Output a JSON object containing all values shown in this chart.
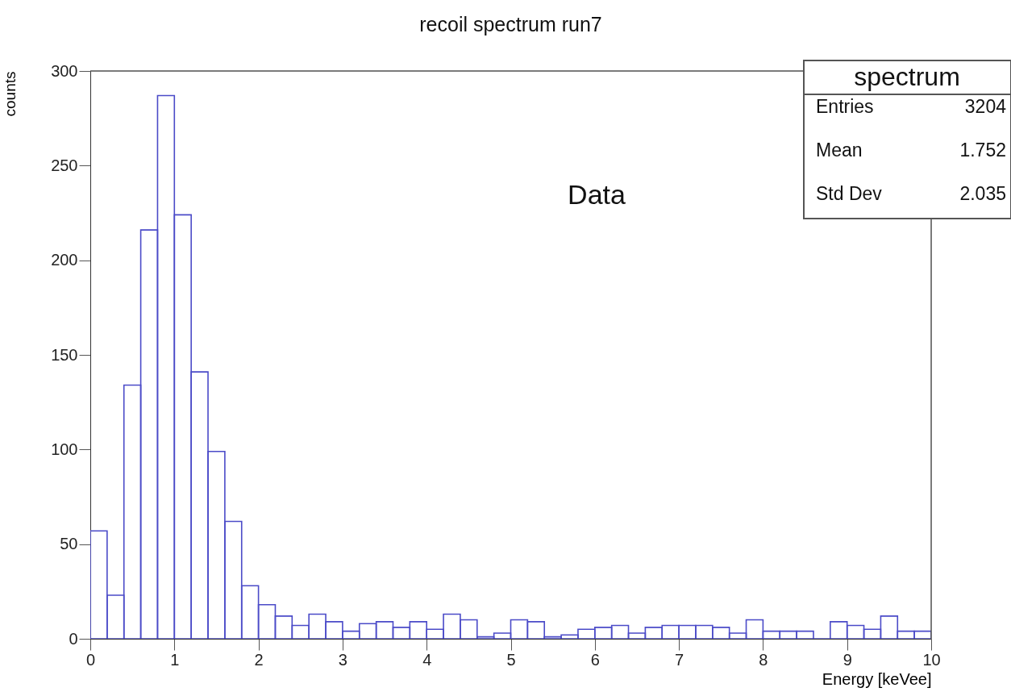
{
  "chart_data": {
    "type": "histogram",
    "title": "recoil spectrum run7",
    "xlabel": "Energy [keVee]",
    "ylabel": "counts",
    "bins": [
      0,
      0.2,
      0.4,
      0.6,
      0.8,
      1.0,
      1.2,
      1.4,
      1.6,
      1.8,
      2.0,
      2.2,
      2.4,
      2.6,
      2.8,
      3.0,
      3.2,
      3.4,
      3.6,
      3.8,
      4.0,
      4.2,
      4.4,
      4.6,
      4.8,
      5.0,
      5.2,
      5.4,
      5.6,
      5.8,
      6.0,
      6.2,
      6.4,
      6.6,
      6.8,
      7.0,
      7.2,
      7.4,
      7.6,
      7.8,
      8.0,
      8.2,
      8.4,
      8.6,
      8.8,
      9.0,
      9.2,
      9.4,
      9.6,
      9.8,
      10.0
    ],
    "values": [
      57,
      23,
      134,
      216,
      287,
      224,
      141,
      99,
      62,
      28,
      18,
      12,
      7,
      13,
      9,
      4,
      8,
      9,
      6,
      9,
      5,
      13,
      10,
      1,
      3,
      10,
      9,
      1,
      2,
      5,
      6,
      7,
      3,
      6,
      7,
      7,
      7,
      6,
      3,
      10,
      4,
      4,
      4,
      0,
      9,
      7,
      5,
      12,
      4,
      4
    ],
    "color": "#4b4bc8",
    "xlim": [
      0,
      10
    ],
    "xticks": [
      0,
      1,
      2,
      3,
      4,
      5,
      6,
      7,
      8,
      9,
      10
    ],
    "ylim": [
      0,
      300
    ],
    "yticks": [
      0,
      50,
      100,
      150,
      200,
      250,
      300
    ],
    "grid": false,
    "annotations": [
      "Data",
      "spectrum",
      "Entries",
      "3204",
      "Mean",
      "1.752",
      "Std Dev",
      "2.035"
    ]
  }
}
